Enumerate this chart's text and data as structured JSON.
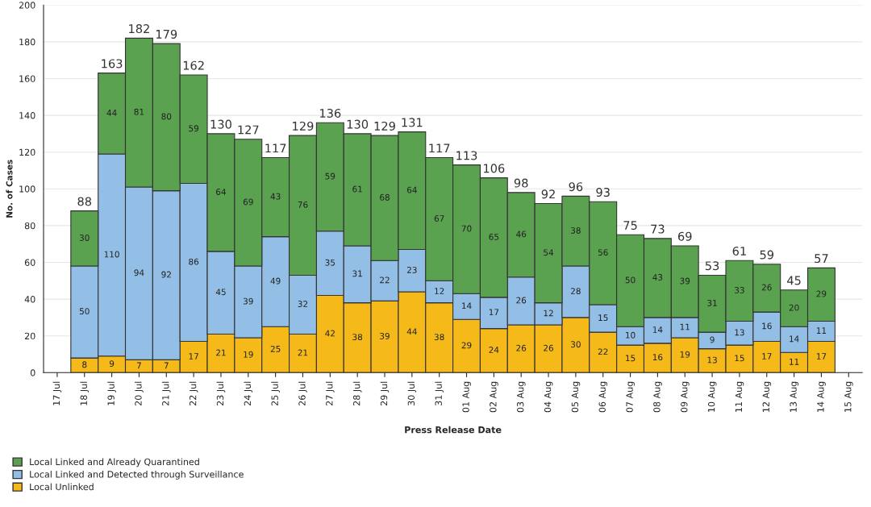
{
  "chart_data": {
    "type": "bar",
    "stacked": true,
    "xlabel": "Press Release Date",
    "ylabel": "No. of Cases",
    "categories": [
      "17 Jul",
      "18 Jul",
      "19 Jul",
      "20 Jul",
      "21 Jul",
      "22 Jul",
      "23 Jul",
      "24 Jul",
      "25 Jul",
      "26 Jul",
      "27 Jul",
      "28 Jul",
      "29 Jul",
      "30 Jul",
      "31 Jul",
      "01 Aug",
      "02 Aug",
      "03 Aug",
      "04 Aug",
      "05 Aug",
      "06 Aug",
      "07 Aug",
      "08 Aug",
      "09 Aug",
      "10 Aug",
      "11 Aug",
      "12 Aug",
      "13 Aug",
      "14 Aug",
      "15 Aug"
    ],
    "series": [
      {
        "name": "Local Unlinked",
        "color": "#f5b91a",
        "values": [
          null,
          8,
          9,
          7,
          7,
          17,
          21,
          19,
          25,
          21,
          42,
          38,
          39,
          44,
          38,
          29,
          24,
          26,
          26,
          30,
          22,
          15,
          16,
          19,
          13,
          15,
          17,
          11,
          17,
          null
        ]
      },
      {
        "name": "Local Linked and Detected through Surveillance",
        "color": "#93bfe6",
        "values": [
          null,
          50,
          110,
          94,
          92,
          86,
          45,
          39,
          49,
          32,
          35,
          31,
          22,
          23,
          12,
          14,
          17,
          26,
          12,
          28,
          15,
          10,
          14,
          11,
          9,
          13,
          16,
          14,
          11,
          null
        ]
      },
      {
        "name": "Local Linked and Already Quarantined",
        "color": "#5aa150",
        "values": [
          null,
          30,
          44,
          81,
          80,
          59,
          64,
          69,
          43,
          76,
          59,
          61,
          68,
          64,
          67,
          70,
          65,
          46,
          54,
          38,
          56,
          50,
          43,
          39,
          31,
          33,
          26,
          20,
          29,
          null
        ]
      }
    ],
    "totals": [
      null,
      "88",
      "163",
      "182",
      "179",
      "162",
      "130",
      "127",
      "117",
      "129",
      "136",
      "130",
      "129",
      "131",
      "117",
      "113",
      "106",
      "98",
      "92",
      "96",
      "93",
      "75",
      "73",
      "69",
      "53",
      "61",
      "59",
      "45",
      "57",
      null
    ],
    "data_labels": true,
    "ylim": [
      0,
      200
    ],
    "yticks": [
      0,
      20,
      40,
      60,
      80,
      100,
      120,
      140,
      160,
      180,
      200
    ],
    "grid": "y",
    "legend": "bottom left"
  }
}
